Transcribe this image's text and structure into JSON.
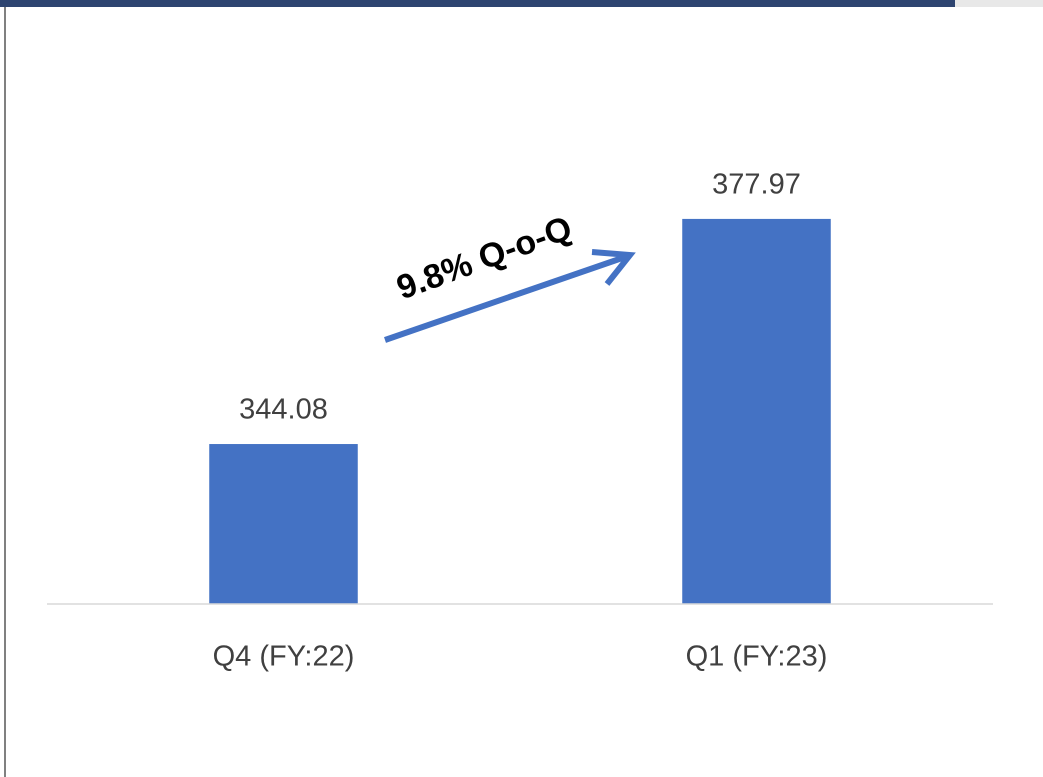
{
  "chart_data": {
    "type": "bar",
    "categories": [
      "Q4 (FY:22)",
      "Q1 (FY:23)"
    ],
    "values": [
      344.08,
      377.97
    ],
    "color": "#4472c4",
    "ylim": [
      320,
      390
    ],
    "annotation": "9.8% Q-o-Q"
  }
}
